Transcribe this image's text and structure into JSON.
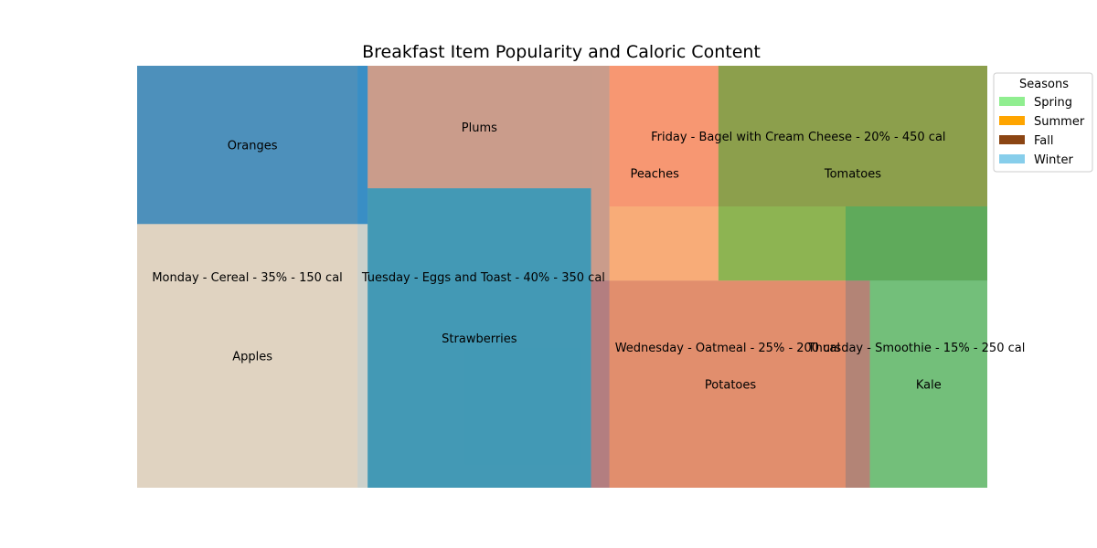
{
  "chart_data": {
    "type": "treemap",
    "title": "Breakfast Item Popularity and Caloric Content",
    "legend": {
      "title": "Seasons",
      "placement": "top-right",
      "entries": [
        {
          "name": "Spring",
          "color": "#90ee90"
        },
        {
          "name": "Summer",
          "color": "#ffa500"
        },
        {
          "name": "Fall",
          "color": "#8b4513"
        },
        {
          "name": "Winter",
          "color": "#87ceeb"
        }
      ]
    },
    "layers": [
      {
        "name": "breakfast items",
        "alpha": 0.6,
        "items": [
          {
            "label": "Monday - Cereal - 35% - 150 cal",
            "day": "Monday",
            "meal": "Cereal",
            "popularity": 35,
            "calories": 150,
            "color": "#7f8c8d"
          },
          {
            "label": "Tuesday - Eggs and Toast - 40% - 350 cal",
            "day": "Tuesday",
            "meal": "Eggs and Toast",
            "popularity": 40,
            "calories": 350,
            "color": "#2980b9"
          },
          {
            "label": "Wednesday - Oatmeal - 25% - 200 cal",
            "day": "Wednesday",
            "meal": "Oatmeal",
            "popularity": 25,
            "calories": 200,
            "color": "#e9c46a"
          },
          {
            "label": "Thursday - Smoothie - 15% - 250 cal",
            "day": "Thursday",
            "meal": "Smoothie",
            "popularity": 15,
            "calories": 250,
            "color": "#2a9d8f"
          },
          {
            "label": "Friday - Bagel with Cream Cheese - 20% - 450 cal",
            "day": "Friday",
            "meal": "Bagel with Cream Cheese",
            "popularity": 20,
            "calories": 450,
            "color": "#e76f51"
          }
        ]
      },
      {
        "name": "seasonal produce",
        "alpha": 0.6,
        "items": [
          {
            "label": "Apples",
            "season": "Fall",
            "value": 20,
            "color": "#ffe4c4"
          },
          {
            "label": "Oranges",
            "season": "Winter",
            "value": 12,
            "color": "#0a74ba"
          },
          {
            "label": "Strawberries",
            "season": "Spring",
            "value": 22,
            "color": "#1a87a0"
          },
          {
            "label": "Plums",
            "season": "Summer",
            "value": 9,
            "color": "#fc8c5a"
          },
          {
            "label": "Potatoes",
            "season": "Fall",
            "value": 19,
            "color": "#d65a48"
          },
          {
            "label": "Kale",
            "season": "Spring",
            "value": 8,
            "color": "#6abd4f"
          },
          {
            "label": "Peaches",
            "season": "Summer",
            "value": 9,
            "color": "#fc8c5a"
          },
          {
            "label": "Tomatoes",
            "season": "Summer",
            "value": 19,
            "color": "#4a9a1a"
          }
        ]
      }
    ]
  }
}
